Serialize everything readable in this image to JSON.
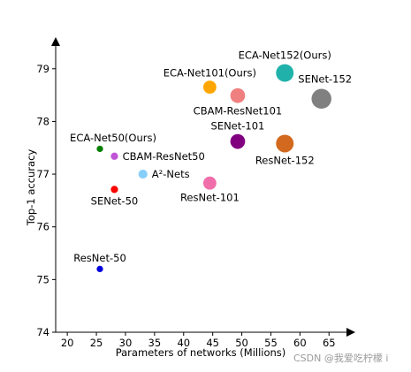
{
  "chart_data": {
    "type": "scatter",
    "xlabel": "Parameters of networks (Millions)",
    "ylabel": "Top-1 accuracy",
    "xlim": [
      18,
      68
    ],
    "ylim": [
      74,
      79.6
    ],
    "x_ticks": [
      20,
      25,
      30,
      35,
      40,
      45,
      50,
      55,
      60,
      65
    ],
    "y_ticks": [
      74,
      75,
      76,
      77,
      78,
      79
    ],
    "grid": false,
    "legend": "none",
    "points": [
      {
        "label": "ResNet-50",
        "x": 25.6,
        "y": 75.2,
        "color": "#0000dd",
        "label_pos": "above"
      },
      {
        "label": "SENet-50",
        "x": 28.1,
        "y": 76.71,
        "color": "#ff0000",
        "label_pos": "below"
      },
      {
        "label": "ECA-Net50(Ours)",
        "x": 25.6,
        "y": 77.48,
        "color": "#007f00",
        "label_pos": "above"
      },
      {
        "label": "CBAM-ResNet50",
        "x": 28.1,
        "y": 77.34,
        "color": "#bf55d6",
        "label_pos": "right"
      },
      {
        "label": "A²-Nets",
        "x": 33.0,
        "y": 77.0,
        "color": "#87cefa",
        "label_pos": "right"
      },
      {
        "label": "ResNet-101",
        "x": 44.5,
        "y": 76.83,
        "color": "#f06eaa",
        "label_pos": "below"
      },
      {
        "label": "ECA-Net101(Ours)",
        "x": 44.5,
        "y": 78.65,
        "color": "#ffa500",
        "label_pos": "above"
      },
      {
        "label": "CBAM-ResNet101",
        "x": 49.3,
        "y": 78.49,
        "color": "#f08080",
        "label_pos": "below"
      },
      {
        "label": "SENet-101",
        "x": 49.3,
        "y": 77.62,
        "color": "#800080",
        "label_pos": "above"
      },
      {
        "label": "ResNet-152",
        "x": 57.4,
        "y": 77.58,
        "color": "#d2691e",
        "label_pos": "below"
      },
      {
        "label": "ECA-Net152(Ours)",
        "x": 57.4,
        "y": 78.92,
        "color": "#20b2aa",
        "label_pos": "above"
      },
      {
        "label": "SENet-152",
        "x": 63.7,
        "y": 78.43,
        "color": "#808080",
        "label_pos": "above"
      }
    ]
  },
  "watermark": "CSDN @我爱吃柠檬 i"
}
